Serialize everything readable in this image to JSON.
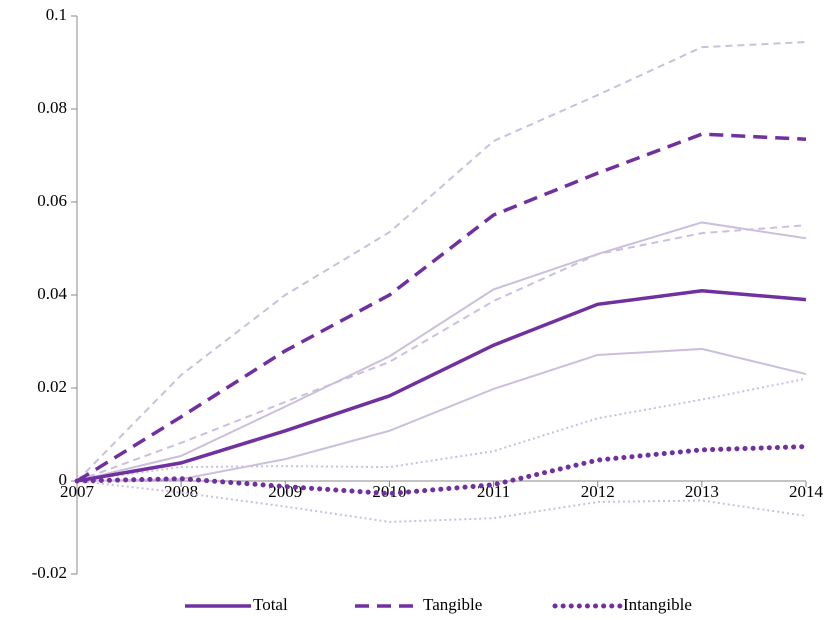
{
  "chart_data": {
    "type": "line",
    "categories": [
      "2007",
      "2008",
      "2009",
      "2010",
      "2011",
      "2012",
      "2013",
      "2014"
    ],
    "ylim": [
      -0.02,
      0.1
    ],
    "yticks": [
      0.1,
      0.08,
      0.06,
      0.04,
      0.02,
      0,
      -0.02
    ],
    "band_color": "#cbbfdc",
    "series": [
      {
        "name": "Total",
        "color": "#7030a0",
        "dash": "solid",
        "values": [
          0,
          0.0039,
          0.0108,
          0.0183,
          0.0292,
          0.038,
          0.0409,
          0.039
        ],
        "upper": [
          0,
          0.0054,
          0.016,
          0.0268,
          0.0412,
          0.0488,
          0.0556,
          0.0522
        ],
        "lower": [
          0,
          0.0004,
          0.0047,
          0.0108,
          0.0198,
          0.0271,
          0.0284,
          0.023
        ]
      },
      {
        "name": "Tangible",
        "color": "#7030a0",
        "dash": "dashed",
        "values": [
          0,
          0.0138,
          0.028,
          0.04,
          0.0572,
          0.0662,
          0.0746,
          0.0735
        ],
        "upper": [
          0,
          0.0228,
          0.04,
          0.0535,
          0.0731,
          0.083,
          0.0933,
          0.0944
        ],
        "lower": [
          0,
          0.0082,
          0.017,
          0.0256,
          0.0387,
          0.0488,
          0.0533,
          0.055
        ]
      },
      {
        "name": "Intangible",
        "color": "#7030a0",
        "dash": "dotted",
        "values": [
          0,
          0.0005,
          -0.0012,
          -0.0027,
          -0.0008,
          0.0045,
          0.0067,
          0.0074
        ],
        "upper": [
          0,
          0.003,
          0.0032,
          0.003,
          0.0064,
          0.0135,
          0.0175,
          0.022
        ],
        "lower": [
          0,
          -0.0025,
          -0.0055,
          -0.0088,
          -0.008,
          -0.0045,
          -0.0042,
          -0.0075
        ]
      }
    ]
  }
}
